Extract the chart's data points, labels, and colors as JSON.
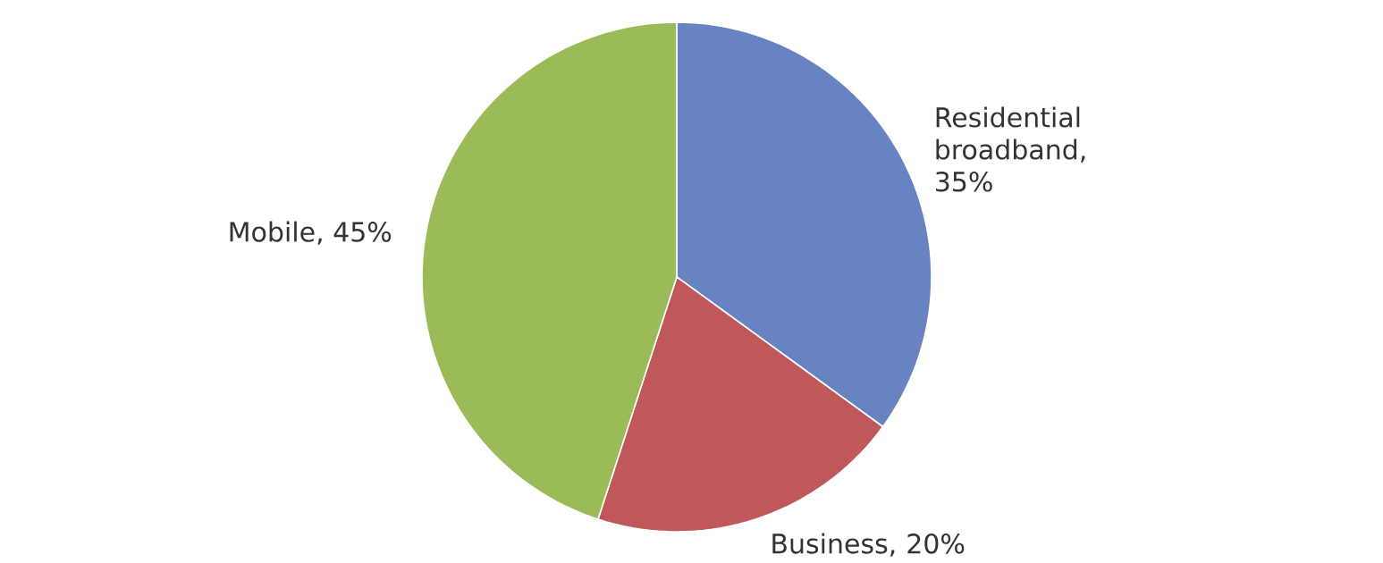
{
  "chart_data": {
    "type": "pie",
    "categories": [
      null,
      null,
      null
    ],
    "values": [
      35,
      20,
      45
    ],
    "colors": [
      "#6783c1",
      "#c0575a",
      "#9bbb59"
    ],
    "value_labels": [
      "Residential broadband, 35%",
      "Business, 20%",
      "Mobile, 45%"
    ]
  }
}
